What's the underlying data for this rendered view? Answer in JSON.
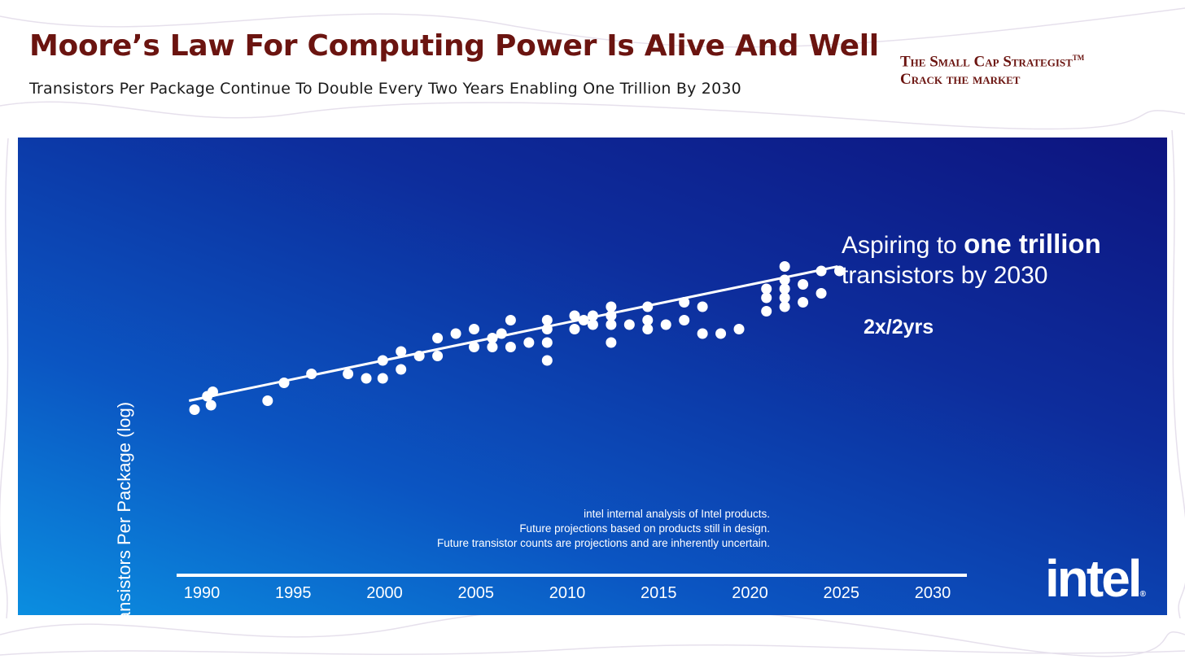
{
  "header": {
    "title": "Moore’s Law For Computing Power Is Alive And Well",
    "subtitle": "Transistors Per Package Continue To Double Every Two Years Enabling One Trillion By 2030"
  },
  "brand": {
    "line1": "The Small Cap Strategist",
    "trademark": "TM",
    "line2": "Crack the market"
  },
  "chart_data": {
    "type": "scatter",
    "title": "",
    "xlabel": "",
    "ylabel": "Transistors Per Package (log)",
    "xlim": [
      1989,
      2031
    ],
    "ylim": [
      0,
      10
    ],
    "x_ticks": [
      "1990",
      "1995",
      "2000",
      "2005",
      "2010",
      "2015",
      "2020",
      "2025",
      "2030"
    ],
    "trend_line": {
      "label": "2x/2yrs",
      "start": [
        1989.3,
        2.3
      ],
      "end": [
        2024.8,
        5.3
      ]
    },
    "series": [
      {
        "name": "Intel products",
        "points": [
          [
            1989.6,
            2.1
          ],
          [
            1990.3,
            2.4
          ],
          [
            1990.5,
            2.2
          ],
          [
            1990.6,
            2.5
          ],
          [
            1993.6,
            2.3
          ],
          [
            1994.5,
            2.7
          ],
          [
            1996.0,
            2.9
          ],
          [
            1998.0,
            2.9
          ],
          [
            1999.0,
            2.8
          ],
          [
            1999.9,
            2.8
          ],
          [
            1999.9,
            3.2
          ],
          [
            2000.9,
            3.0
          ],
          [
            2000.9,
            3.4
          ],
          [
            2001.9,
            3.3
          ],
          [
            2002.9,
            3.3
          ],
          [
            2002.9,
            3.7
          ],
          [
            2003.9,
            3.8
          ],
          [
            2004.9,
            3.5
          ],
          [
            2004.9,
            3.9
          ],
          [
            2005.9,
            3.5
          ],
          [
            2005.9,
            3.7
          ],
          [
            2006.4,
            3.8
          ],
          [
            2006.9,
            3.5
          ],
          [
            2006.9,
            4.1
          ],
          [
            2007.9,
            3.6
          ],
          [
            2008.9,
            3.2
          ],
          [
            2008.9,
            3.6
          ],
          [
            2008.9,
            3.9
          ],
          [
            2008.9,
            4.1
          ],
          [
            2010.4,
            3.9
          ],
          [
            2010.4,
            4.2
          ],
          [
            2010.9,
            4.1
          ],
          [
            2011.4,
            4.0
          ],
          [
            2011.4,
            4.2
          ],
          [
            2012.4,
            3.6
          ],
          [
            2012.4,
            4.0
          ],
          [
            2012.4,
            4.2
          ],
          [
            2012.4,
            4.4
          ],
          [
            2013.4,
            4.0
          ],
          [
            2014.4,
            3.9
          ],
          [
            2014.4,
            4.1
          ],
          [
            2014.4,
            4.4
          ],
          [
            2015.4,
            4.0
          ],
          [
            2016.4,
            4.1
          ],
          [
            2016.4,
            4.5
          ],
          [
            2017.4,
            3.8
          ],
          [
            2017.4,
            4.4
          ],
          [
            2018.4,
            3.8
          ],
          [
            2019.4,
            3.9
          ],
          [
            2020.9,
            4.3
          ],
          [
            2020.9,
            4.6
          ],
          [
            2020.9,
            4.8
          ],
          [
            2021.9,
            4.4
          ],
          [
            2021.9,
            4.6
          ],
          [
            2021.9,
            4.8
          ],
          [
            2021.9,
            5.0
          ],
          [
            2021.9,
            5.3
          ],
          [
            2022.9,
            4.5
          ],
          [
            2022.9,
            4.9
          ],
          [
            2023.9,
            4.7
          ],
          [
            2023.9,
            5.2
          ],
          [
            2024.9,
            5.2
          ]
        ]
      }
    ],
    "annotations": {
      "headline_prefix": "Aspiring to ",
      "headline_bold": "one trillion",
      "headline_line2": "transistors by 2030",
      "rate": "2x/2yrs",
      "notes": [
        "intel internal analysis of Intel products.",
        "Future projections based on products still in design.",
        "Future transistor counts are projections and are inherently uncertain."
      ]
    }
  },
  "logo": {
    "text": "intel",
    "mark": "®"
  },
  "colors": {
    "title": "#6b1410",
    "panel_top": "#0d147f",
    "panel_bottom": "#0b8ee0",
    "marks": "#ffffff"
  }
}
